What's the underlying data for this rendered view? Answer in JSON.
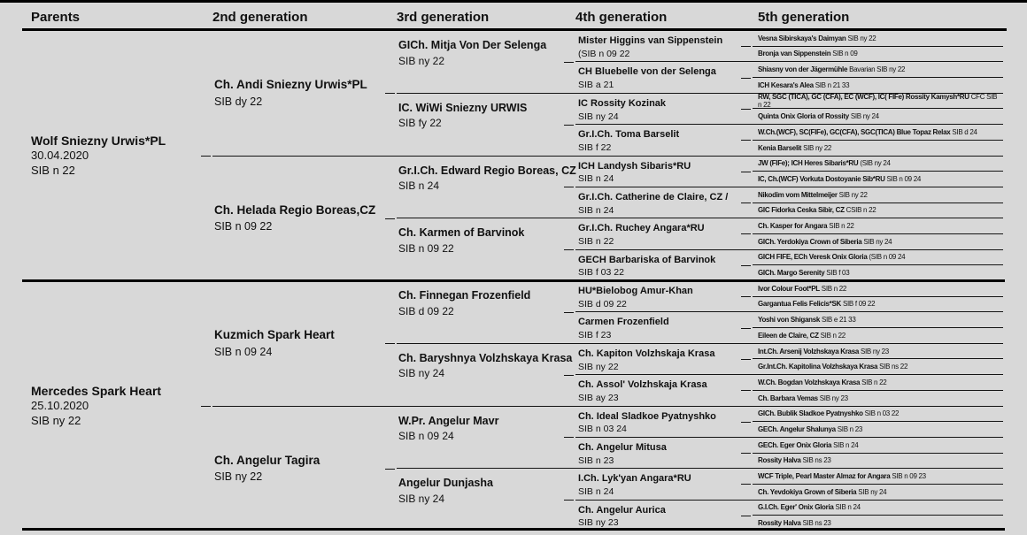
{
  "colors": {
    "background": "#d8d8d8",
    "line": "#141414",
    "text": "#101010"
  },
  "header": {
    "columns": [
      "Parents",
      "2nd generation",
      "3rd generation",
      "4th generation",
      "5th generation"
    ]
  },
  "parents": [
    {
      "name": "Wolf Sniezny Urwis*PL",
      "date": "30.04.2020",
      "code": "SIB n 22"
    },
    {
      "name": "Mercedes Spark Heart",
      "date": "25.10.2020",
      "code": "SIB ny 22"
    }
  ],
  "gen2": [
    {
      "name": "Ch. Andi Sniezny Urwis*PL",
      "code": "SIB dy 22"
    },
    {
      "name": "Ch. Helada Regio Boreas,CZ",
      "code": "SIB n 09 22"
    },
    {
      "name": "Kuzmich Spark Heart",
      "code": "SIB n 09 24"
    },
    {
      "name": "Ch. Angelur Tagira",
      "code": "SIB ny 22"
    }
  ],
  "gen3": [
    {
      "name": "GICh. Mitja Von Der Selenga",
      "code": "SIB ny 22"
    },
    {
      "name": "IC. WiWi Sniezny URWIS",
      "code": "SIB fy 22"
    },
    {
      "name": "Gr.I.Ch. Edward Regio Boreas, CZ",
      "code": "SIB n 24"
    },
    {
      "name": "Ch. Karmen of Barvinok",
      "code": "SIB n 09 22"
    },
    {
      "name": "Ch. Finnegan Frozenfield",
      "code": "SIB d 09 22"
    },
    {
      "name": "Ch. Baryshnya Volzhskaya Krasa",
      "code": "SIB ny 24"
    },
    {
      "name": "W.Pr. Angelur Mavr",
      "code": "SIB n 09 24"
    },
    {
      "name": "Angelur Dunjasha",
      "code": "SIB ny 24"
    }
  ],
  "gen4": [
    {
      "name": "Mister Higgins van Sippenstein",
      "code": "(SIB n 09 22"
    },
    {
      "name": "CH Bluebelle von der Selenga",
      "code": "SIB a 21"
    },
    {
      "name": "IC Rossity Kozinak",
      "code": "SIB ny 24"
    },
    {
      "name": "Gr.I.Ch. Toma Barselit",
      "code": "SIB f 22"
    },
    {
      "name": "ICH Landysh Sibaris*RU",
      "code": "SIB n 24"
    },
    {
      "name": "Gr.I.Ch. Catherine de Claire, CZ /",
      "code": "SIB n 24"
    },
    {
      "name": "Gr.I.Ch. Ruchey Angara*RU",
      "code": "SIB n 22"
    },
    {
      "name": "GECH Barbariska of Barvinok",
      "code": "SIB f 03 22"
    },
    {
      "name": "HU*Bielobog Amur-Khan",
      "code": "SIB d 09 22"
    },
    {
      "name": "Carmen Frozenfield",
      "code": "SIB f 23"
    },
    {
      "name": "Ch. Kapiton Volzhskaja Krasa",
      "code": "SIB ny 22"
    },
    {
      "name": "Ch. Assol' Volzhskaja Krasa",
      "code": "SIB ay 23"
    },
    {
      "name": "Ch. Ideal Sladkoe Pyatnyshko",
      "code": "SIB n 03 24"
    },
    {
      "name": "Ch. Angelur Mitusa",
      "code": "SIB n 23"
    },
    {
      "name": "I.Ch. Lyk'yan Angara*RU",
      "code": "SIB n 24"
    },
    {
      "name": "Ch. Angelur Aurica",
      "code": "SIB ny 23"
    }
  ],
  "gen5": [
    {
      "name": "Vesna Sibirskaya's Daimyan",
      "code": "SIB ny 22"
    },
    {
      "name": "Bronja van Sippenstein",
      "code": "SIB n 09"
    },
    {
      "name": "Shiasny von der Jägermühle",
      "code": "Bavarian SIB ny 22"
    },
    {
      "name": "ICH Kesara's Alea",
      "code": "SIB n 21 33"
    },
    {
      "name": "RW, SGC (TICA), GC (CFA), EC (WCF), IC( FIFe) Rossity Kamysh*RU",
      "code": "CFC SIB n 22"
    },
    {
      "name": "Quinta Onix Gloria of Rossity",
      "code": "SIB ny 24"
    },
    {
      "name": "W.Ch.(WCF), SC(FIFe), GC(CFA), SGC(TICA) Blue Topaz Relax",
      "code": "SIB d 24"
    },
    {
      "name": "Kenia Barselit",
      "code": "SIB ny 22"
    },
    {
      "name": "JW (FIFe); ICH Heres Sibaris*RU",
      "code": "(SIB ny 24"
    },
    {
      "name": "IC, Ch.(WCF) Vorkuta Dostoyanie Sib*RU",
      "code": "SIB n 09 24"
    },
    {
      "name": "Nikodim vom Mittelmeijer",
      "code": "SIB ny 22"
    },
    {
      "name": "GIC Fidorka Ceska Sibir, CZ",
      "code": "CSIB n 22"
    },
    {
      "name": "Ch. Kasper for Angara",
      "code": "SIB n 22"
    },
    {
      "name": "GICh. Yerdokiya Crown of Siberia",
      "code": "SIB ny 24"
    },
    {
      "name": "GICH FIFE, ECh Veresk Onix Gloria",
      "code": "(SIB n 09 24"
    },
    {
      "name": "GICh. Margo Serenity",
      "code": "SIB f 03"
    },
    {
      "name": "Ivor Colour Foot*PL",
      "code": "SIB n 22"
    },
    {
      "name": "Gargantua Felis Felicis*SK",
      "code": "SIB f 09 22"
    },
    {
      "name": "Yoshi von Shigansk",
      "code": "SIB e 21 33"
    },
    {
      "name": "Eileen de Claire, CZ",
      "code": "SIB n 22"
    },
    {
      "name": "Int.Ch. Arsenij Volzhskaya Krasa",
      "code": "SIB ny 23"
    },
    {
      "name": "Gr.Int.Ch. Kapitolina Volzhskaya Krasa",
      "code": "SIB ns 22"
    },
    {
      "name": "W.Ch. Bogdan Volzhskaya Krasa",
      "code": "SIB n 22"
    },
    {
      "name": "Ch. Barbara Vemas",
      "code": "SIB ny 23"
    },
    {
      "name": "GICh. Bublik Sladkoe Pyatnyshko",
      "code": "SIB n 03 22"
    },
    {
      "name": "GECh. Angelur Shalunya",
      "code": "SIB n 23"
    },
    {
      "name": "GECh. Eger Onix Gloria",
      "code": "SIB n 24"
    },
    {
      "name": "Rossity Halva",
      "code": "SIB ns 23"
    },
    {
      "name": "WCF Triple, Pearl Master Almaz for Angara",
      "code": "SIB n 09 23"
    },
    {
      "name": "Ch. Yevdokiya Grown of Siberia",
      "code": "SIB ny 24"
    },
    {
      "name": "G.I.Ch. Eger' Onix Gloria",
      "code": "SIB n 24"
    },
    {
      "name": "Rossity Halva",
      "code": "SIB ns 23"
    }
  ]
}
